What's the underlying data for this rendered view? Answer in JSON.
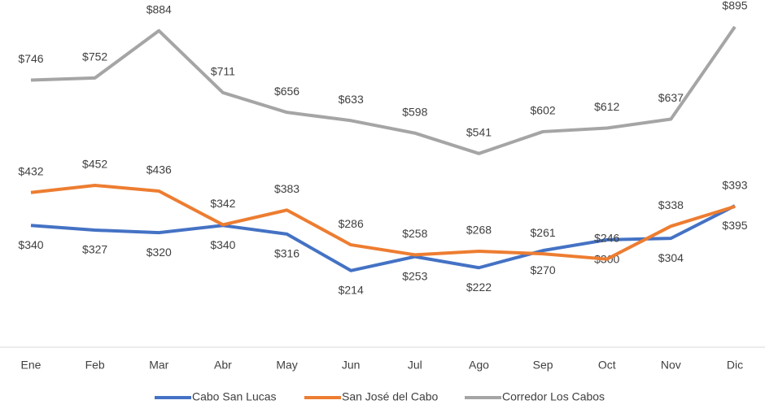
{
  "chart_data": {
    "type": "line",
    "categories": [
      "Ene",
      "Feb",
      "Mar",
      "Abr",
      "May",
      "Jun",
      "Jul",
      "Ago",
      "Sep",
      "Oct",
      "Nov",
      "Dic"
    ],
    "series": [
      {
        "name": "Cabo San Lucas",
        "color": "#4472c4",
        "values": [
          340,
          327,
          320,
          340,
          316,
          214,
          253,
          222,
          270,
          300,
          304,
          395
        ],
        "value_labels": [
          "$340",
          "$327",
          "$320",
          "$340",
          "$316",
          "$214",
          "$253",
          "$222",
          "$270",
          "$300",
          "$304",
          "$395"
        ]
      },
      {
        "name": "San José del Cabo",
        "color": "#ed7d31",
        "values": [
          432,
          452,
          436,
          342,
          383,
          286,
          258,
          268,
          261,
          246,
          338,
          393
        ],
        "value_labels": [
          "$432",
          "$452",
          "$436",
          "$342",
          "$383",
          "$286",
          "$258",
          "$268",
          "$261",
          "$246",
          "$338",
          "$393"
        ]
      },
      {
        "name": "Corredor Los Cabos",
        "color": "#a5a5a5",
        "values": [
          746,
          752,
          884,
          711,
          656,
          633,
          598,
          541,
          602,
          612,
          637,
          895
        ],
        "value_labels": [
          "$746",
          "$752",
          "$884",
          "$711",
          "$656",
          "$633",
          "$598",
          "$541",
          "$602",
          "$612",
          "$637",
          "$895"
        ]
      }
    ],
    "legend": "bottom"
  }
}
